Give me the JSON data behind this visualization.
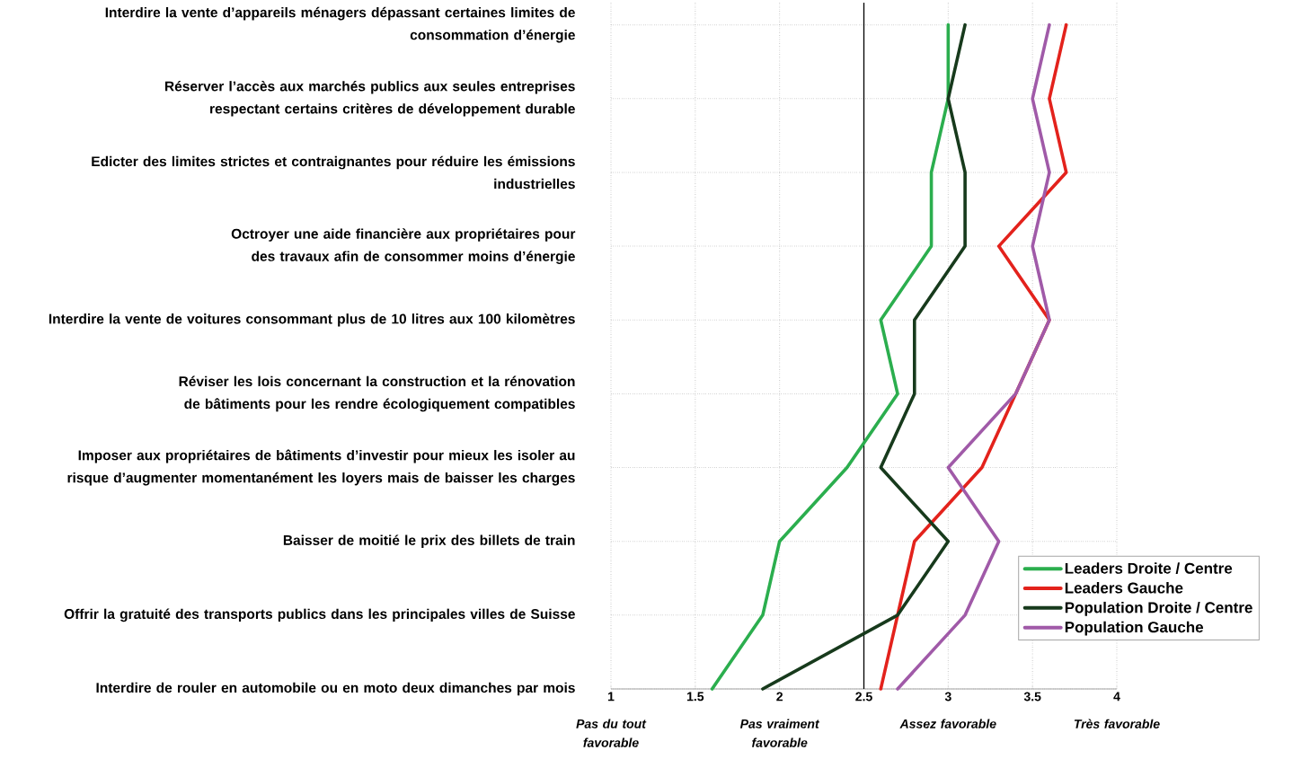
{
  "chart_data": {
    "type": "line",
    "orientation": "horizontal",
    "categories": [
      "Interdire la vente d’appareils ménagers dépassant certaines limites de consommation d’énergie",
      "Réserver l’accès aux marchés publics aux seules entreprises respectant certains critères de développement durable",
      "Edicter des limites strictes et contraignantes pour réduire les émissions industrielles",
      "Octroyer une aide financière aux propriétaires pour des travaux afin de consommer moins d’énergie",
      "Interdire la vente de voitures consommant plus de 10 litres aux 100 kilomètres",
      "Réviser les lois concernant la construction et la rénovation de bâtiments pour les rendre écologiquement compatibles",
      "Imposer aux propriétaires de bâtiments d’investir pour mieux les isoler au risque d’augmenter momentanément les loyers mais de baisser les charges",
      "Baisser de moitié le prix des billets de train",
      "Offrir la gratuité des transports publics dans les principales villes de Suisse",
      "Interdire de rouler en automobile ou en moto deux dimanches par mois"
    ],
    "series": [
      {
        "name": "Leaders Droite / Centre",
        "color": "#2bae4e",
        "values": [
          3.0,
          3.0,
          2.9,
          2.9,
          2.6,
          2.7,
          2.4,
          2.0,
          1.9,
          1.6
        ]
      },
      {
        "name": "Leaders Gauche",
        "color": "#e3221c",
        "values": [
          3.7,
          3.6,
          3.7,
          3.3,
          3.6,
          3.4,
          3.2,
          2.8,
          2.7,
          2.6
        ]
      },
      {
        "name": "Population Droite / Centre",
        "color": "#173a1c",
        "values": [
          3.1,
          3.0,
          3.1,
          3.1,
          2.8,
          2.8,
          2.6,
          3.0,
          2.7,
          1.9
        ]
      },
      {
        "name": "Population Gauche",
        "color": "#a05aa8",
        "values": [
          3.6,
          3.5,
          3.6,
          3.5,
          3.6,
          3.4,
          3.0,
          3.3,
          3.1,
          2.7
        ]
      }
    ],
    "xlim": [
      1,
      4
    ],
    "xticks": [
      1,
      1.5,
      2,
      2.5,
      3,
      3.5,
      4
    ],
    "annotations": [
      "Pas du tout favorable",
      "Pas vraiment favorable",
      "Assez favorable",
      "Très favorable"
    ],
    "ref_lines": [
      {
        "axis": "x",
        "value": 2.5,
        "color": "#000000"
      }
    ],
    "grid": true,
    "legend": "bottom right",
    "line_style": "solid",
    "marker": "none"
  }
}
